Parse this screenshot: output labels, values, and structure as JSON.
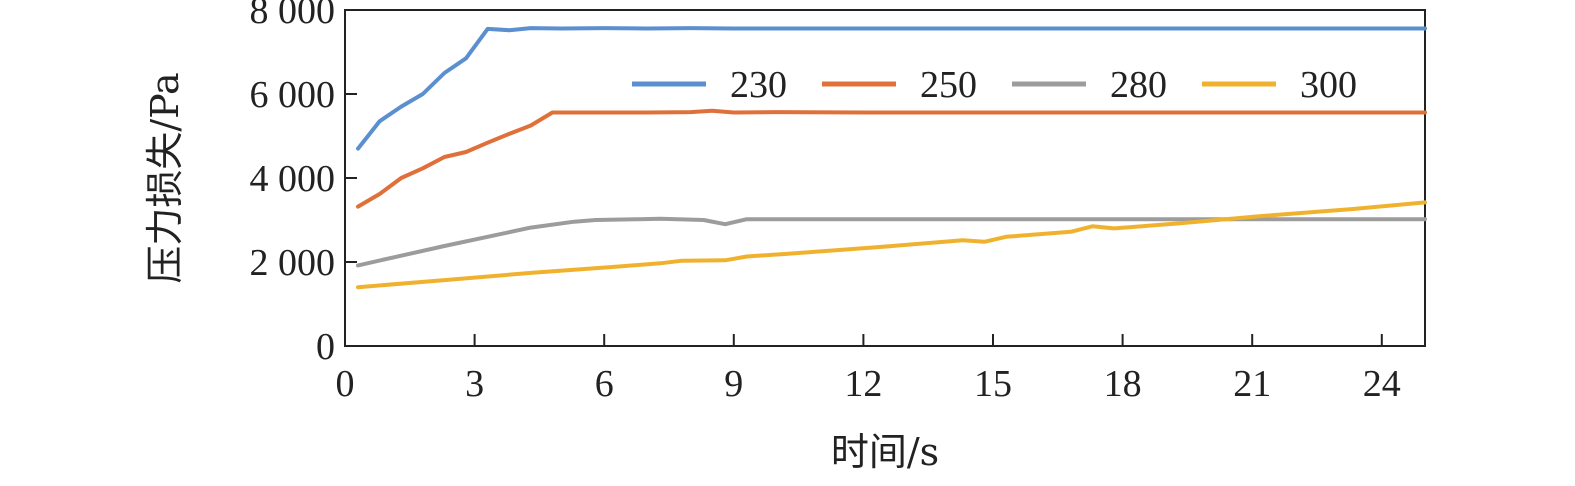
{
  "chart_data": {
    "type": "line",
    "xlabel": "时间/s",
    "ylabel": "压力损失/Pa",
    "xlim": [
      0,
      25
    ],
    "ylim": [
      0,
      8000
    ],
    "xticks": [
      0,
      3,
      6,
      9,
      12,
      15,
      18,
      21,
      24
    ],
    "yticks": [
      0,
      2000,
      4000,
      6000,
      8000
    ],
    "ytick_labels": [
      "0",
      "2 000",
      "4 000",
      "6 000",
      "8 000"
    ],
    "grid": false,
    "legend_position": "top-right",
    "series": [
      {
        "name": "230",
        "color": "#5b8fcf",
        "x": [
          0.3,
          0.8,
          1.3,
          1.8,
          2.3,
          2.8,
          3.3,
          3.8,
          4.3,
          5,
          6,
          7,
          8,
          9,
          10,
          12,
          15,
          18,
          21,
          25
        ],
        "y": [
          4700,
          5350,
          5700,
          6000,
          6500,
          6850,
          7550,
          7520,
          7570,
          7560,
          7570,
          7560,
          7570,
          7560,
          7560,
          7560,
          7560,
          7560,
          7560,
          7560
        ]
      },
      {
        "name": "250",
        "color": "#e0703a",
        "x": [
          0.3,
          0.8,
          1.3,
          1.8,
          2.3,
          2.8,
          3.3,
          3.8,
          4.3,
          4.8,
          5.5,
          6,
          7,
          8,
          8.5,
          9,
          10,
          12,
          15,
          18,
          21,
          25
        ],
        "y": [
          3320,
          3620,
          4000,
          4230,
          4500,
          4620,
          4840,
          5050,
          5250,
          5560,
          5560,
          5560,
          5560,
          5570,
          5600,
          5560,
          5570,
          5560,
          5560,
          5560,
          5560,
          5560
        ]
      },
      {
        "name": "280",
        "color": "#9c9c9c",
        "x": [
          0.3,
          1.3,
          2.3,
          3.3,
          4.3,
          5.3,
          5.8,
          6.8,
          7.3,
          8.3,
          8.8,
          9.3,
          10,
          12,
          15,
          18,
          21,
          25
        ],
        "y": [
          1920,
          2150,
          2380,
          2600,
          2820,
          2960,
          3000,
          3020,
          3030,
          3000,
          2900,
          3020,
          3020,
          3020,
          3020,
          3020,
          3020,
          3020
        ]
      },
      {
        "name": "300",
        "color": "#f0b22e",
        "x": [
          0.3,
          2.3,
          4.3,
          6.3,
          7.3,
          7.8,
          8.8,
          9.3,
          10.3,
          12.3,
          14.3,
          14.8,
          15.3,
          16.8,
          17.3,
          17.8,
          19.3,
          21.3,
          23.3,
          25
        ],
        "y": [
          1400,
          1570,
          1740,
          1890,
          1970,
          2030,
          2040,
          2130,
          2200,
          2350,
          2520,
          2480,
          2600,
          2720,
          2850,
          2800,
          2920,
          3100,
          3260,
          3420
        ]
      }
    ]
  }
}
